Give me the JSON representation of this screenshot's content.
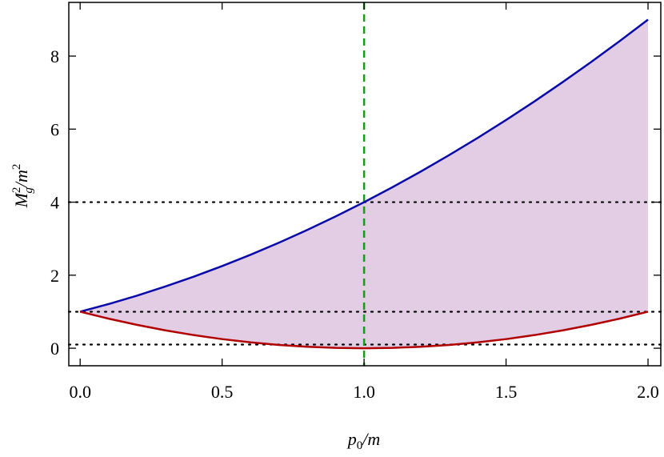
{
  "chart_data": {
    "type": "line",
    "x": [
      0,
      0.1,
      0.2,
      0.3,
      0.4,
      0.5,
      0.6,
      0.7,
      0.8,
      0.9,
      1,
      1.1,
      1.2,
      1.3,
      1.4,
      1.5,
      1.6,
      1.7,
      1.8,
      1.9,
      2
    ],
    "series": [
      {
        "color": "#0a0aa8",
        "values": [
          1,
          1.21,
          1.44,
          1.69,
          1.96,
          2.25,
          2.56,
          2.89,
          3.24,
          3.61,
          4,
          4.41,
          4.84,
          5.29,
          5.76,
          6.25,
          6.76,
          7.29,
          7.84,
          8.41,
          9
        ]
      },
      {
        "color": "#b00000",
        "values": [
          1,
          0.81,
          0.64,
          0.49,
          0.36,
          0.25,
          0.16,
          0.09,
          0.04,
          0.01,
          0,
          0.01,
          0.04,
          0.09,
          0.16,
          0.25,
          0.36,
          0.49,
          0.64,
          0.81,
          1
        ]
      }
    ],
    "fill_between": {
      "color": "#e2cde4"
    },
    "hlines": [
      4,
      1,
      0.1
    ],
    "vline": {
      "value": 1,
      "color": "#10a010"
    },
    "xlim": [
      -0.04,
      2.045
    ],
    "ylim": [
      -0.48,
      9.47
    ],
    "xticks": [
      {
        "value": 0,
        "label": "0.0"
      },
      {
        "value": 0.5,
        "label": "0.5"
      },
      {
        "value": 1,
        "label": "1.0"
      },
      {
        "value": 1.5,
        "label": "1.5"
      },
      {
        "value": 2,
        "label": "2.0"
      }
    ],
    "yticks": [
      0,
      2,
      4,
      6,
      8
    ],
    "xlabel": {
      "base": "p",
      "sub": "0",
      "rest": "/m"
    },
    "ylabel": {
      "base": "M",
      "sup": "2",
      "sub": "g",
      "rest": "/m",
      "sup2": "2"
    }
  }
}
